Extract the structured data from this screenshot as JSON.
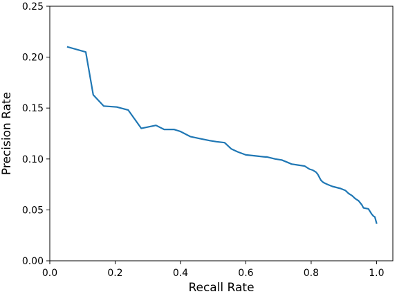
{
  "chart_data": {
    "type": "line",
    "title": "",
    "xlabel": "Recall Rate",
    "ylabel": "Precision Rate",
    "xlim": [
      0.0,
      1.05
    ],
    "ylim": [
      0.0,
      0.25
    ],
    "xticks": [
      0.0,
      0.2,
      0.4,
      0.6,
      0.8,
      1.0
    ],
    "xtick_labels": [
      "0.0",
      "0.2",
      "0.4",
      "0.6",
      "0.8",
      "1.0"
    ],
    "yticks": [
      0.0,
      0.05,
      0.1,
      0.15,
      0.2,
      0.25
    ],
    "ytick_labels": [
      "0.00",
      "0.05",
      "0.10",
      "0.15",
      "0.20",
      "0.25"
    ],
    "grid": false,
    "legend": "none",
    "series": [
      {
        "color": "#1f77b4",
        "x": [
          0.055,
          0.11,
          0.133,
          0.165,
          0.205,
          0.24,
          0.28,
          0.325,
          0.35,
          0.38,
          0.4,
          0.43,
          0.46,
          0.49,
          0.51,
          0.535,
          0.555,
          0.575,
          0.6,
          0.63,
          0.66,
          0.665,
          0.69,
          0.71,
          0.725,
          0.74,
          0.76,
          0.78,
          0.795,
          0.805,
          0.815,
          0.82,
          0.83,
          0.837,
          0.85,
          0.865,
          0.89,
          0.905,
          0.915,
          0.925,
          0.935,
          0.945,
          0.955,
          0.96,
          0.975,
          0.985,
          0.99,
          0.995,
          1.0
        ],
        "y": [
          0.21,
          0.205,
          0.163,
          0.152,
          0.151,
          0.148,
          0.13,
          0.133,
          0.129,
          0.129,
          0.127,
          0.122,
          0.12,
          0.118,
          0.117,
          0.116,
          0.11,
          0.107,
          0.104,
          0.103,
          0.102,
          0.102,
          0.1,
          0.099,
          0.097,
          0.095,
          0.094,
          0.093,
          0.09,
          0.089,
          0.087,
          0.085,
          0.079,
          0.077,
          0.075,
          0.073,
          0.071,
          0.069,
          0.066,
          0.064,
          0.061,
          0.059,
          0.055,
          0.052,
          0.051,
          0.046,
          0.044,
          0.043,
          0.037
        ]
      }
    ]
  }
}
